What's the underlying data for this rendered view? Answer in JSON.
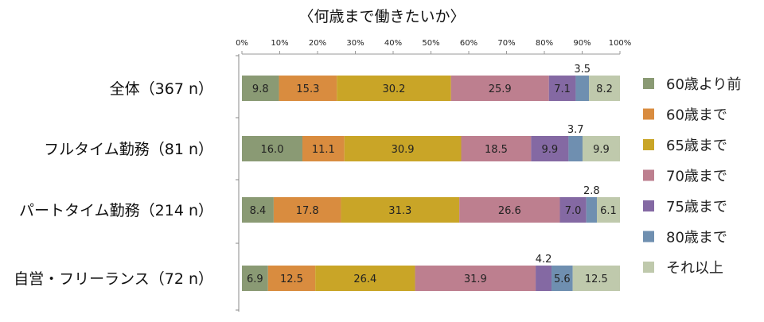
{
  "chart_data": {
    "type": "bar",
    "stacked": true,
    "orientation": "horizontal",
    "title": "〈何歳まで働きたいか〉",
    "xlim": [
      0,
      100
    ],
    "x_ticks": [
      "0%",
      "10%",
      "20%",
      "30%",
      "40%",
      "50%",
      "60%",
      "70%",
      "80%",
      "90%",
      "100%"
    ],
    "categories": [
      "全体（367 n）",
      "フルタイム勤務（81 n）",
      "パートタイム勤務（214 n）",
      "自営・フリーランス（72 n）"
    ],
    "series": [
      {
        "name": "60歳より前",
        "color": "#8a9a74",
        "values": [
          9.8,
          16.0,
          8.4,
          6.9
        ]
      },
      {
        "name": "60歳まで",
        "color": "#d98c3f",
        "values": [
          15.3,
          11.1,
          17.8,
          12.5
        ]
      },
      {
        "name": "65歳まで",
        "color": "#c9a527",
        "values": [
          30.2,
          30.9,
          31.3,
          26.4
        ]
      },
      {
        "name": "70歳まで",
        "color": "#bd7f8f",
        "values": [
          25.9,
          18.5,
          26.6,
          31.9
        ]
      },
      {
        "name": "75歳まで",
        "color": "#8469a3",
        "values": [
          7.1,
          9.9,
          7.0,
          4.2
        ]
      },
      {
        "name": "80歳まで",
        "color": "#6f8fb0",
        "values": [
          3.5,
          3.7,
          2.8,
          5.6
        ]
      },
      {
        "name": "それ以上",
        "color": "#bfc9ac",
        "values": [
          8.2,
          9.9,
          6.1,
          12.5
        ]
      }
    ],
    "value_labels": [
      [
        "9.8",
        "15.3",
        "30.2",
        "25.9",
        "7.1",
        "3.5",
        "8.2"
      ],
      [
        "16.0",
        "11.1",
        "30.9",
        "18.5",
        "9.9",
        "3.7",
        "9.9"
      ],
      [
        "8.4",
        "17.8",
        "31.3",
        "26.6",
        "7.0",
        "2.8",
        "6.1"
      ],
      [
        "6.9",
        "12.5",
        "26.4",
        "31.9",
        "4.2",
        "5.6",
        "12.5"
      ]
    ],
    "legend_position": "right",
    "grid": false
  }
}
